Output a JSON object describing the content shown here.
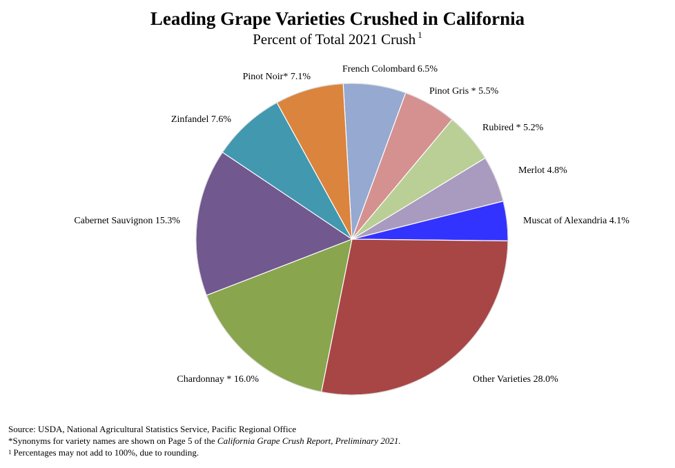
{
  "chart_data": {
    "type": "pie",
    "title": "Leading Grape Varieties Crushed in California",
    "subtitle": "Percent of Total 2021 Crush",
    "subtitle_note_marker": "1",
    "unit": "%",
    "slices": [
      {
        "label": "French Colombard",
        "value": 6.5,
        "display": "6.5%",
        "color": "#95A9D1"
      },
      {
        "label": "Pinot Gris *",
        "value": 5.5,
        "display": "5.5%",
        "color": "#D49190"
      },
      {
        "label": "Rubired *",
        "value": 5.2,
        "display": "5.2%",
        "color": "#B9CF95"
      },
      {
        "label": "Merlot",
        "value": 4.8,
        "display": "4.8%",
        "color": "#A99BBF"
      },
      {
        "label": "Muscat of Alexandria",
        "value": 4.1,
        "display": "4.1%",
        "color": "#3333FF"
      },
      {
        "label": "Other Varieties",
        "value": 28.0,
        "display": "28.0%",
        "color": "#A84645"
      },
      {
        "label": "Chardonnay *",
        "value": 16.0,
        "display": "16.0%",
        "color": "#89A54E"
      },
      {
        "label": "Cabernet Sauvignon",
        "value": 15.3,
        "display": "15.3%",
        "color": "#71588F"
      },
      {
        "label": "Zinfandel",
        "value": 7.6,
        "display": "7.6%",
        "color": "#4198AF"
      },
      {
        "label": "Pinot Noir*",
        "value": 7.1,
        "display": "7.1%",
        "color": "#DB843D"
      }
    ]
  },
  "footnotes": {
    "source": "Source: USDA, National Agricultural Statistics Service, Pacific Regional Office",
    "synonyms_prefix": "*Synonyms  for variety names are shown on Page 5 of the ",
    "synonyms_report": "California Grape Crush Report, Preliminary 2021.",
    "rounding_marker": "1",
    "rounding": "Percentages may not add to 100%, due to rounding."
  }
}
